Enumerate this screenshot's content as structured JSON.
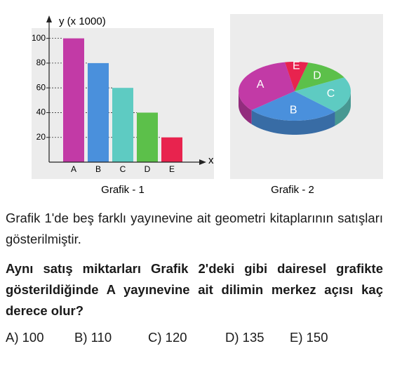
{
  "chart_data": [
    {
      "type": "bar",
      "ylabel": "y (x 1000)",
      "xlabel": "x",
      "caption": "Grafik - 1",
      "categories": [
        "A",
        "B",
        "C",
        "D",
        "E"
      ],
      "values": [
        100,
        80,
        60,
        40,
        20
      ],
      "colors": [
        "#c23aa6",
        "#4a90dc",
        "#5ecbc2",
        "#5cc04a",
        "#e8234e"
      ],
      "ylim": [
        0,
        110
      ],
      "yticks": [
        20,
        40,
        60,
        80,
        100
      ],
      "grid": true
    },
    {
      "type": "pie",
      "caption": "Grafik - 2",
      "categories": [
        "A",
        "B",
        "C",
        "D",
        "E"
      ],
      "values": [
        100,
        80,
        60,
        40,
        20
      ],
      "colors": [
        "#c23aa6",
        "#4a90dc",
        "#5ecbc2",
        "#5cc04a",
        "#e8234e"
      ]
    }
  ],
  "text": {
    "intro": "Grafik 1'de beş farklı yayınevine ait geometri kitaplarının satışları gösterilmiştir.",
    "question": "Aynı satış miktarları Grafik 2'deki gibi dairesel grafikte gösterildiğinde A yayınevine ait dilimin merkez açısı kaç derece olur?",
    "options": [
      "A) 100",
      "B) 110",
      "C) 120",
      "D) 135",
      "E) 150"
    ]
  }
}
